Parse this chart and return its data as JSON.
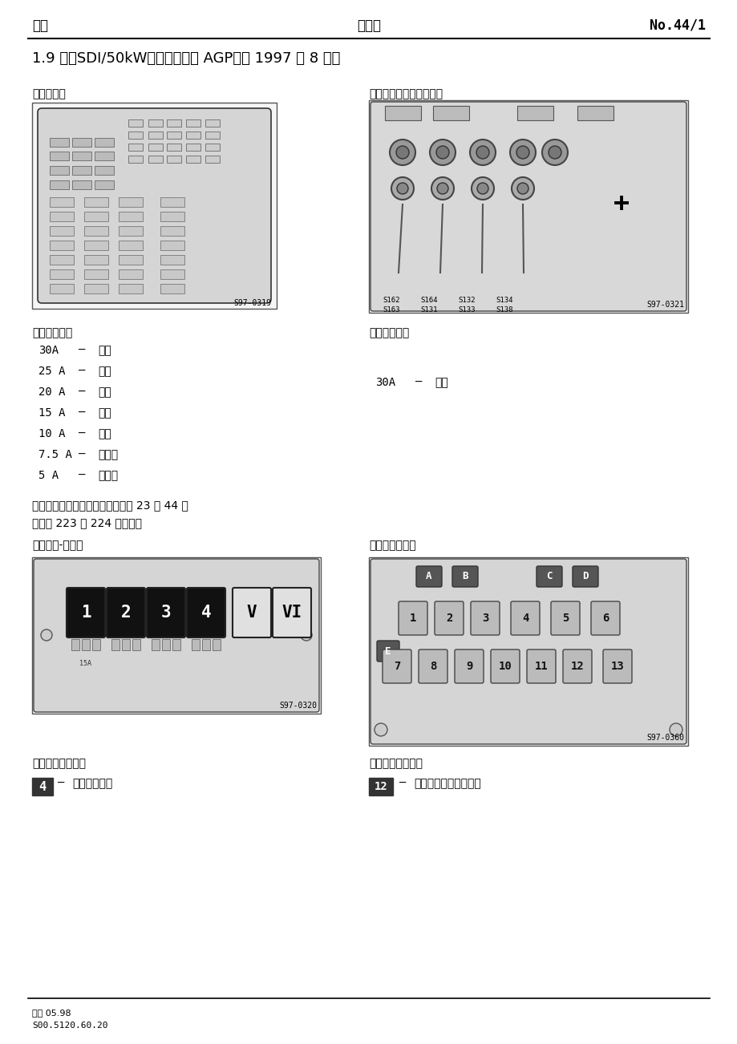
{
  "header_left": "欧雅",
  "header_center": "电路图",
  "header_right": "No.44/1",
  "title": "1.9 升，SDI/50kW，发动机编码 AGP，从 1997 年 8 月起",
  "fuse_box_label": "保险丝盒：",
  "battery_fuse_box_label": "在蓄电池上的保险丝盒：",
  "fuse_img_code1": "S97-0319",
  "fuse_img_code2": "S97-0321",
  "fuse_color_title_left": "保险丝颜色：",
  "fuse_colors_left": [
    [
      "30A",
      "—",
      "绿色"
    ],
    [
      "25 A",
      "—",
      "白色"
    ],
    [
      "20 A",
      "—",
      "黄色"
    ],
    [
      "15 A",
      "—",
      "蓝色"
    ],
    [
      "10 A",
      "—",
      "红色"
    ],
    [
      "7.5 A",
      "—",
      "深棕色"
    ],
    [
      "5 A",
      "—",
      "浅棕色"
    ]
  ],
  "fuse_color_title_right": "保险丝颜色：",
  "fuse_colors_right": [
    [
      "30A",
      "—",
      "绿色"
    ]
  ],
  "note_text1": "保险丝盒里的保险丝从保险丝位置 23 至 44 在",
  "note_text2": "电路图 223 至 224 里标明。",
  "relay_box_label": "继电器盒-前面：",
  "aux_relay_label": "辅助继电器盒：",
  "relay_img_code1": "S97-0320",
  "relay_img_code2": "S97-0360",
  "relay_assign_title_left": "继电器位置分配：",
  "relay_assign_title_right": "继电器位置分配：",
  "relay_left_num": "4",
  "relay_left_desc": "预热塞继电器",
  "relay_right_num": "12",
  "relay_right_desc": "柴油机直喷系统继电器",
  "footer_line1": "版本 05.98",
  "footer_line2": "S00.5120.60.20",
  "bg_color": "#ffffff"
}
